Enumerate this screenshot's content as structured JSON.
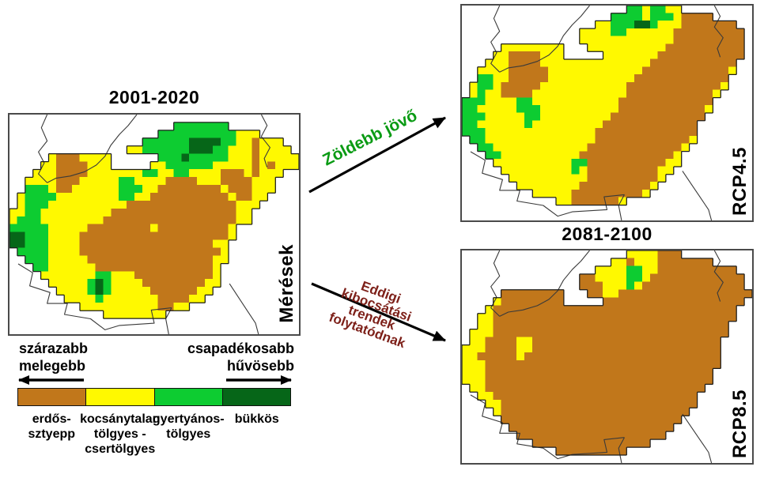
{
  "palette": {
    "brown": "#C1771B",
    "yellow": "#FFF900",
    "green": "#0DCC31",
    "dark_green": "#066618",
    "outline": "#1b1b1b",
    "neighbor_border": "#3a3a3a",
    "arrow_black": "#000000",
    "greener_label_color": "#0a9b14",
    "emissions_label_color": "#7d2019"
  },
  "legend_chars": {
    "B": "brown",
    "Y": "yellow",
    "G": "green",
    "D": "dark_green"
  },
  "maps": [
    {
      "id": "measurements",
      "title": "2001-2020",
      "side_label": "Mérések",
      "rows": [
        ".....................................",
        ".....................GGGGGGG.........",
        "...................GGGGGGGGGGYYY.....",
        ".................GGGGGGDDDDGGYYBYYY..",
        "...............YYGGGGGGDDDGGYYYBYYYY.",
        ".....YBBBYYYY......GGGDGGGGGYYYBYYYYY",
        "....YYBBBBYYY.....YYGGGGGGYYYYYBYBYYY",
        "...YYYBBBBYYYYYYYGGYYGGYYYYBBBYBYYY..",
        "..YYYYBBBYYYYYGGYYYYBBBBYYYBBBBYYY...",
        "..GGGYBBYYYYYYGGGYYBBBBBBBBYBBBYYY...",
        ".YGGGGYYYYYYYYGGYYBBBBBBBBBBYBBYY....",
        ".YGGGYYYYYYYYYYBBBBBBBBBBBBBBYYY.....",
        "YYGGYYYYYYYYYBBBBBBBBBBBBBBBBYY......",
        "YGGGYYYYYYYYBBBBBBBBBBBBBBBBBYY......",
        "GGGGGYYYYYBBBBBBBBYBBBBBBBBBY........",
        "DDGGGYYYYBBBBBBBBBBBBBBBBBBBY........",
        "DDGGGYYYYBBBBBBBBBBBBBBBBBYY.........",
        ".GGGGYYYYBBBBBBBBBBBBBBBBBBY.........",
        "..GGGYYYYYBBBBBBBBBBBBBBBBYY.........",
        "...GGYYYYYYBBBBBBBBBBBBBBBY..........",
        "....YYYYYYYGGYYYBBBBBBBBBBY..........",
        ".....YYYYYGDGYYYYBBBBBBBBYY..........",
        "......YYYYGDGYYYYYBBBBBBYY...........",
        ".......YYYYGYYYYYYYBBBBYY............",
        ".........YYYYYYYYYYBBYY..............",
        "............YYYYYYYY.................",
        ".....................................",
        "....................................."
      ]
    },
    {
      "id": "rcp45",
      "title": "",
      "side_label": "RCP4.5",
      "rows": [
        ".....................GGYGGYY.........",
        "...................GGGGYGGGYBBBB.....",
        ".................YYGGGDDGYYYBBBBBBB..",
        "...............YYYYGGYYYYYYBBBBBBBBB.",
        "...............YYYYYYYYYYYYBBBBBBBBB.",
        ".....YYYYYYYY...YYYYYYYYYYBBBBBBBBBB.",
        "....YYBBBBYYY.....YYYYYYYBBBBBBBBBBB.",
        "...YYYBBBBYYYYYYYYYYYYYYBBBBBBBBBBB..",
        "..YYYYBBBBBYYYYYYYYYYYYBBBBBBBBBBBY..",
        "..GGYYBBBBBYYYYYYYYYYYBBBBBBBBBBBB...",
        ".YGGYBBBBBYYYYYYYYYYYBBBBBBBBBBBBY...",
        ".YGYYBBBBYYYYYYYYYYYYBBBBBBBBBBBY....",
        "GGGYYYYGGYYYYYYYYYYYBBBBBBBBBBBB.....",
        "GGYYYYYGGGYYYYYYYYYYBBBBBBBBBBBY.....",
        "GGGYYYYYGGYYYYYYYYYBBBBBBBBBBBB......",
        "GGYYYYYYGYYYYYYYYYBBBBBBBBBBBB.......",
        "GGGYYYYYYYYYYYYYYBBBBBBBBBBBBB.......",
        ".GGYYYYYYYYYYYYYYBBBBBBBBBBBBY.......",
        "..GGYYYYYYYYYYYYBBBBBBBBBBBBY........",
        "...GGYYYYYYYYYYBBBBBBBBBBBBY.........",
        "....YYYYYYYYYYGGBBBBBBBBBBYY.........",
        ".....YYYYYYYYYGYBBBBBBBBBYY..........",
        "......YYYYYYYYYYBBBBBBBBBY...........",
        ".......YYYYYYYYBBBBBBBBBY............",
        ".........YYYYYBBBBBBBBBY.............",
        "............YYBBBBBBY................",
        ".....................................",
        "....................................."
      ]
    },
    {
      "id": "rcp85",
      "title": "2081-2100",
      "side_label": "RCP8.5",
      "rows": [
        ".....................YYYYBBB.........",
        "...................YYBYYYBBBBBBB.....",
        ".................YYYYGGYYBBBBBBBBBB..",
        "...............BBYYYYGGYBBBBBBBBBBBB.",
        "...............BBBYYYGYBBBBBBBBBBBBB.",
        ".....BBBBBBBB...BBYYBBBBBBBBBBBBBBBBB",
        "....YBBBBBBBB.....BBBBBBBBBBBBBBBBBB.",
        "...YBBBBBBBBBBBBBBBBBBBBBBBBBBBBBBB..",
        "..YYBBBBBBBBBBBBBBBBBBBBBBBBBBBBBBB..",
        "..YYBBBBBBBBBBBBBBBBBBBBBBBBBBBBBB...",
        ".YYYBBBBBBBBBBBBBBBBBBBBBBBBBBBBBB...",
        ".YYBBBBYYBBBBBBBBBBBBBBBBBBBBBBBB....",
        "YYYBBBBYYBBBBBBBBBBBBBBBBBBBBBBBB....",
        "YYBBBBBYBBBBBBBBBBBBBBBBBBBBBBBBB....",
        "YYYBBBBBBBBBBBBBBBBBBBBBBBBBBBBBB....",
        "YYYBBBBBBBBBBBBBBBBBBBBBBBBBBBBB.....",
        "YYYBBBBBBBBBBBBBBBBBBBBBBBBBBBBB.....",
        ".YYBBBBBBBBBBBBBBBBBBBBBBBBBBBB......",
        "..YYBBBBBBBBBBBBBBBBBBBBBBBBBB.......",
        "...YYBBBBBBBBBBBBBBBBBBBBBBBBB.......",
        "....YBBBBBBBBBBBBBBBBBBBBBBBB........",
        ".....BBBBBBBBBBBBBBBBBBBBBBB.........",
        "......BBBBBBBBBBBBBBBBBBBBB..........",
        ".......BBBBBBBBBBBBBBBBBBB...........",
        ".........BBBBBBBBBBBBBBB.............",
        "............BBBBBBBBB................",
        "....................................."
      ]
    }
  ],
  "neighbor_borders": [
    [
      [
        44,
        0
      ],
      [
        41,
        5
      ],
      [
        38,
        9
      ],
      [
        35,
        14
      ],
      [
        33,
        19
      ],
      [
        30,
        23
      ],
      [
        26,
        26
      ],
      [
        21,
        28
      ],
      [
        16,
        29
      ],
      [
        13,
        31
      ]
    ],
    [
      [
        13,
        0
      ],
      [
        11,
        6
      ],
      [
        13,
        12
      ],
      [
        10,
        17
      ],
      [
        12,
        22
      ],
      [
        10,
        27
      ],
      [
        13,
        31
      ]
    ],
    [
      [
        87,
        0
      ],
      [
        89,
        5
      ],
      [
        87,
        10
      ],
      [
        90,
        15
      ],
      [
        88,
        20
      ],
      [
        89,
        24
      ]
    ],
    [
      [
        3,
        68
      ],
      [
        8,
        72
      ],
      [
        7,
        78
      ],
      [
        14,
        81
      ],
      [
        13,
        86
      ],
      [
        20,
        86
      ],
      [
        19,
        91
      ],
      [
        28,
        93
      ],
      [
        33,
        98
      ],
      [
        38,
        96
      ],
      [
        50,
        95
      ],
      [
        49,
        89
      ],
      [
        56,
        88
      ]
    ],
    [
      [
        56,
        88
      ],
      [
        54,
        93
      ],
      [
        55,
        100
      ]
    ],
    [
      [
        76,
        77
      ],
      [
        79,
        83
      ],
      [
        82,
        89
      ],
      [
        85,
        95
      ],
      [
        86,
        100
      ]
    ]
  ],
  "arrows": {
    "greener": {
      "label": "Zöldebb jövő"
    },
    "emissions": {
      "label_lines": [
        "Eddigi",
        "kibocsátási",
        "trendek",
        "folytatódnak"
      ]
    }
  },
  "legend": {
    "left_label_lines": [
      "szárazabb",
      "melegebb"
    ],
    "right_label_lines": [
      "csapadékosabb",
      "hűvösebb"
    ],
    "classes": [
      {
        "color": "brown",
        "label_lines": [
          "erdős-",
          "sztyepp"
        ]
      },
      {
        "color": "yellow",
        "label_lines": [
          "kocsánytalan",
          "tölgyes -",
          "csertölgyes"
        ]
      },
      {
        "color": "green",
        "label_lines": [
          "gyertyános-",
          "tölgyes"
        ]
      },
      {
        "color": "dark_green",
        "label_lines": [
          "bükkös"
        ]
      }
    ]
  }
}
